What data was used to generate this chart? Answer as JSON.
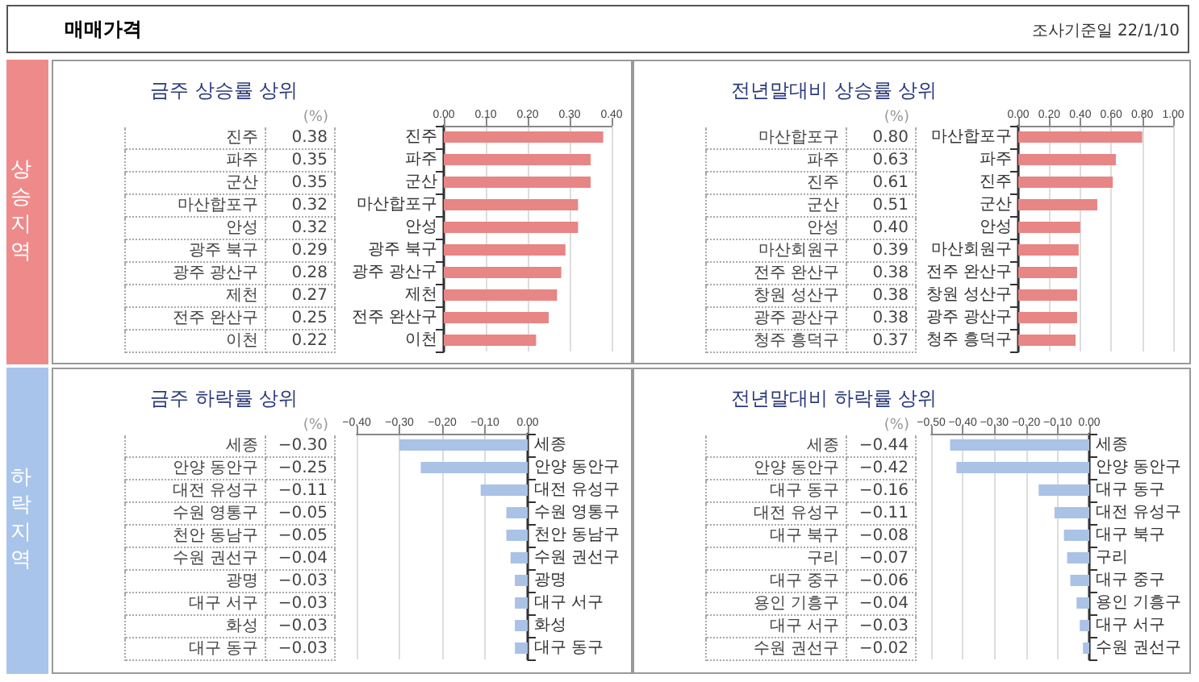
{
  "chart_data": [
    {
      "type": "bar",
      "orientation": "horizontal",
      "title": "금주 상승률 상위",
      "annotations": [
        "(%)",
        "상승지역",
        "매매가격",
        "조사기준일 22/1/10"
      ],
      "categories": [
        "진주",
        "파주",
        "군산",
        "마산합포구",
        "안성",
        "광주 북구",
        "광주 광산구",
        "제천",
        "전주 완산구",
        "이천"
      ],
      "values": [
        0.38,
        0.35,
        0.35,
        0.32,
        0.32,
        0.29,
        0.28,
        0.27,
        0.25,
        0.22
      ],
      "value_labels": [
        "0.38",
        "0.35",
        "0.35",
        "0.32",
        "0.32",
        "0.29",
        "0.28",
        "0.27",
        "0.25",
        "0.22"
      ],
      "color": "#e88585",
      "xlim": [
        0,
        0.4
      ],
      "xticks": [
        {
          "value": 0,
          "label": "0.00"
        },
        {
          "value": 0.1,
          "label": "0.10"
        },
        {
          "value": 0.2,
          "label": "0.20"
        },
        {
          "value": 0.3,
          "label": "0.30"
        },
        {
          "value": 0.4,
          "label": "0.40"
        }
      ],
      "grid": "x"
    },
    {
      "type": "bar",
      "orientation": "horizontal",
      "title": "전년말대비 상승률 상위",
      "annotations": [
        "(%)"
      ],
      "categories": [
        "마산합포구",
        "파주",
        "진주",
        "군산",
        "안성",
        "마산회원구",
        "전주 완산구",
        "창원 성산구",
        "광주 광산구",
        "청주 흥덕구"
      ],
      "values": [
        0.8,
        0.63,
        0.61,
        0.51,
        0.4,
        0.39,
        0.38,
        0.38,
        0.38,
        0.37
      ],
      "value_labels": [
        "0.80",
        "0.63",
        "0.61",
        "0.51",
        "0.40",
        "0.39",
        "0.38",
        "0.38",
        "0.38",
        "0.37"
      ],
      "color": "#e88585",
      "xlim": [
        0,
        1
      ],
      "xticks": [
        {
          "value": 0,
          "label": "0.00"
        },
        {
          "value": 0.2,
          "label": "0.20"
        },
        {
          "value": 0.4,
          "label": "0.40"
        },
        {
          "value": 0.6,
          "label": "0.60"
        },
        {
          "value": 0.8,
          "label": "0.80"
        },
        {
          "value": 1,
          "label": "1.00"
        }
      ],
      "grid": "x"
    },
    {
      "type": "bar",
      "orientation": "horizontal",
      "title": "금주 하락률 상위",
      "annotations": [
        "(%)",
        "하락지역"
      ],
      "categories": [
        "세종",
        "안양 동안구",
        "대전 유성구",
        "수원 영통구",
        "천안 동남구",
        "수원 권선구",
        "광명",
        "대구 서구",
        "화성",
        "대구 동구"
      ],
      "values": [
        -0.3,
        -0.25,
        -0.11,
        -0.05,
        -0.05,
        -0.04,
        -0.03,
        -0.03,
        -0.03,
        -0.03
      ],
      "value_labels": [
        "−0.30",
        "−0.25",
        "−0.11",
        "−0.05",
        "−0.05",
        "−0.04",
        "−0.03",
        "−0.03",
        "−0.03",
        "−0.03"
      ],
      "color": "#a9c2e6",
      "xlim": [
        -0.4,
        0
      ],
      "xticks": [
        {
          "value": -0.4,
          "label": "−0.40"
        },
        {
          "value": -0.3,
          "label": "−0.30"
        },
        {
          "value": -0.2,
          "label": "−0.20"
        },
        {
          "value": -0.1,
          "label": "−0.10"
        },
        {
          "value": 0,
          "label": "0.00"
        }
      ],
      "grid": "x"
    },
    {
      "type": "bar",
      "orientation": "horizontal",
      "title": "전년말대비 하락률 상위",
      "annotations": [
        "(%)"
      ],
      "categories": [
        "세종",
        "안양 동안구",
        "대구 동구",
        "대전 유성구",
        "대구 북구",
        "구리",
        "대구 중구",
        "용인 기흥구",
        "대구 서구",
        "수원 권선구"
      ],
      "values": [
        -0.44,
        -0.42,
        -0.16,
        -0.11,
        -0.08,
        -0.07,
        -0.06,
        -0.04,
        -0.03,
        -0.02
      ],
      "value_labels": [
        "−0.44",
        "−0.42",
        "−0.16",
        "−0.11",
        "−0.08",
        "−0.07",
        "−0.06",
        "−0.04",
        "−0.03",
        "−0.02"
      ],
      "color": "#a9c2e6",
      "xlim": [
        -0.5,
        0
      ],
      "xticks": [
        {
          "value": -0.5,
          "label": "−0.50"
        },
        {
          "value": -0.4,
          "label": "−0.40"
        },
        {
          "value": -0.3,
          "label": "−0.30"
        },
        {
          "value": -0.2,
          "label": "−0.20"
        },
        {
          "value": -0.1,
          "label": "−0.10"
        },
        {
          "value": 0,
          "label": "0.00"
        }
      ],
      "grid": "x"
    }
  ]
}
